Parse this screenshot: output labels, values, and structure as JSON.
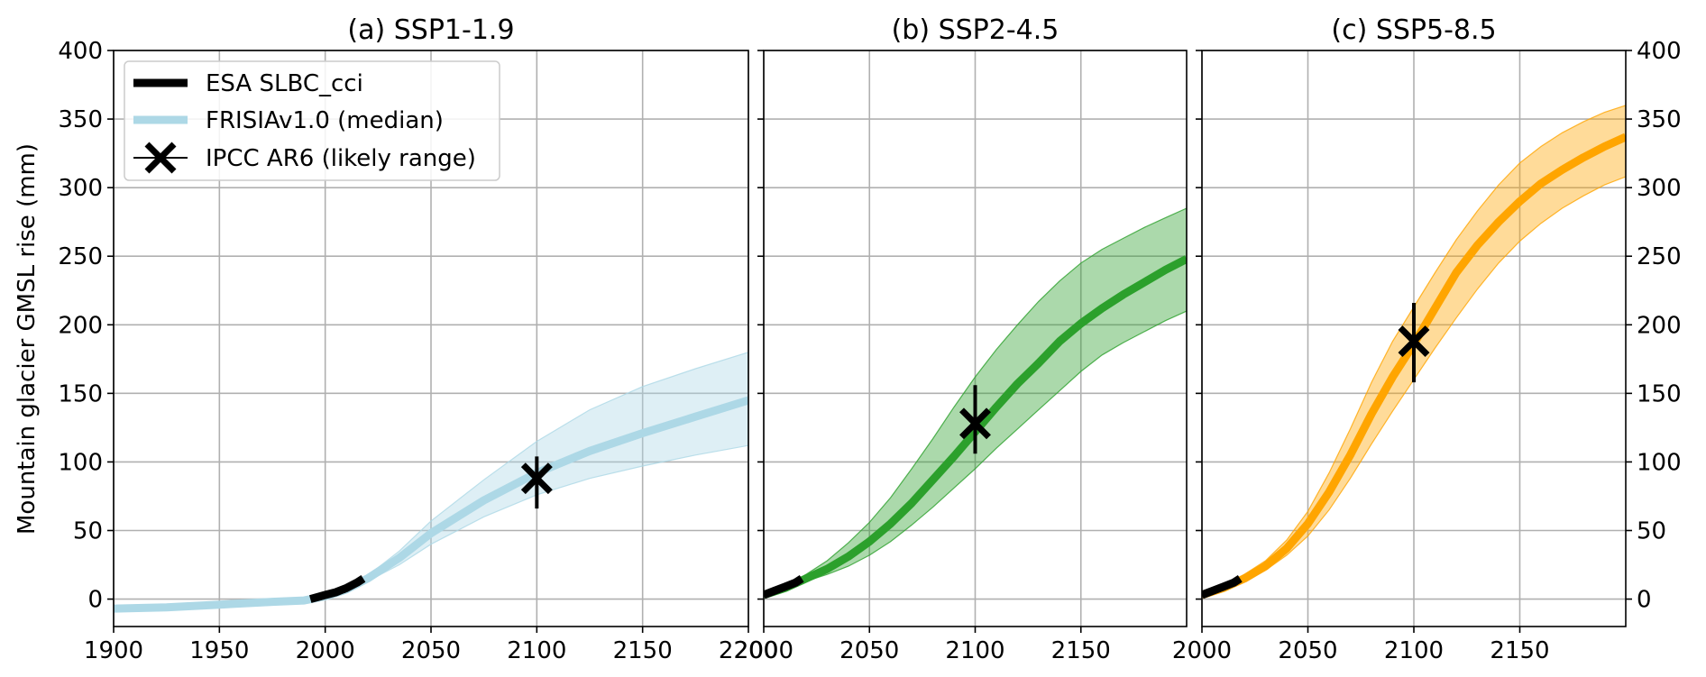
{
  "figure": {
    "ylabel": "Mountain glacier GMSL rise (mm)"
  },
  "legend": {
    "placement": "upper-left of panel (a)",
    "entries": [
      {
        "label": "ESA SLBC_cci",
        "kind": "line",
        "color": "#000000"
      },
      {
        "label": "FRISIAv1.0 (median)",
        "kind": "line",
        "color": "#add8e6"
      },
      {
        "label": "IPCC AR6 (likely range)",
        "kind": "errorbar-x",
        "color": "#000000"
      }
    ]
  },
  "chart_data": [
    {
      "type": "line",
      "title": "(a) SSP1-1.9",
      "xlim": [
        1900,
        2200
      ],
      "ylim": [
        -20,
        400
      ],
      "xticks": [
        1900,
        1950,
        2000,
        2050,
        2100,
        2150,
        2200
      ],
      "yticks": [
        0,
        50,
        100,
        150,
        200,
        250,
        300,
        350,
        400
      ],
      "grid": true,
      "color": "#add8e6",
      "median": {
        "x": [
          1900,
          1925,
          1950,
          1975,
          1990,
          2000,
          2010,
          2020,
          2035,
          2050,
          2075,
          2100,
          2125,
          2150,
          2175,
          2200
        ],
        "y": [
          -7,
          -6,
          -4,
          -2,
          -1,
          2,
          7,
          15,
          30,
          48,
          72,
          92,
          108,
          121,
          133,
          145
        ]
      },
      "band": {
        "x": [
          1900,
          1925,
          1950,
          1975,
          1990,
          2000,
          2010,
          2020,
          2035,
          2050,
          2075,
          2100,
          2125,
          2150,
          2175,
          2200
        ],
        "lower": [
          -9,
          -8,
          -6,
          -3,
          -1,
          2,
          6,
          13,
          25,
          40,
          60,
          76,
          88,
          97,
          105,
          112
        ],
        "upper": [
          -5,
          -4,
          -2,
          -1,
          0,
          3,
          8,
          17,
          35,
          57,
          87,
          115,
          138,
          155,
          168,
          180
        ]
      },
      "observed": {
        "x": [
          1993,
          2000,
          2005,
          2010,
          2015,
          2018
        ],
        "y": [
          0,
          3,
          5,
          8,
          12,
          15
        ]
      },
      "ipcc": {
        "x": 2100,
        "y": 88,
        "low": 66,
        "high": 104
      }
    },
    {
      "type": "line",
      "title": "(b) SSP2-4.5",
      "xlim": [
        2000,
        2200
      ],
      "ylim": [
        -20,
        400
      ],
      "xticks": [
        2000,
        2050,
        2100,
        2150
      ],
      "yticks": [
        0,
        50,
        100,
        150,
        200,
        250,
        300,
        350,
        400
      ],
      "grid": true,
      "color": "#2ca02c",
      "median": {
        "x": [
          2000,
          2010,
          2020,
          2030,
          2040,
          2050,
          2060,
          2070,
          2080,
          2090,
          2100,
          2110,
          2120,
          2130,
          2140,
          2150,
          2160,
          2170,
          2180,
          2190,
          2200
        ],
        "y": [
          3,
          8,
          15,
          22,
          31,
          42,
          55,
          70,
          87,
          104,
          122,
          140,
          157,
          172,
          188,
          201,
          212,
          222,
          231,
          240,
          248
        ]
      },
      "band": {
        "x": [
          2000,
          2010,
          2020,
          2030,
          2040,
          2050,
          2060,
          2070,
          2080,
          2090,
          2100,
          2110,
          2120,
          2130,
          2140,
          2150,
          2160,
          2170,
          2180,
          2190,
          2200
        ],
        "lower": [
          3,
          7,
          13,
          18,
          24,
          32,
          42,
          54,
          67,
          81,
          95,
          110,
          124,
          138,
          152,
          166,
          178,
          187,
          195,
          203,
          210
        ],
        "upper": [
          3,
          9,
          18,
          28,
          41,
          56,
          74,
          95,
          117,
          140,
          162,
          182,
          200,
          217,
          232,
          245,
          255,
          263,
          271,
          278,
          285
        ]
      },
      "observed": {
        "x": [
          2000,
          2005,
          2010,
          2015,
          2018
        ],
        "y": [
          3,
          6,
          9,
          12,
          15
        ]
      },
      "ipcc": {
        "x": 2100,
        "y": 128,
        "low": 106,
        "high": 156
      }
    },
    {
      "type": "line",
      "title": "(c) SSP5-8.5",
      "xlim": [
        2000,
        2200
      ],
      "ylim": [
        -20,
        400
      ],
      "xticks": [
        2000,
        2050,
        2100,
        2150
      ],
      "yticks": [
        0,
        50,
        100,
        150,
        200,
        250,
        300,
        350,
        400
      ],
      "grid": true,
      "color": "#ffa500",
      "median": {
        "x": [
          2000,
          2010,
          2020,
          2030,
          2040,
          2050,
          2060,
          2070,
          2080,
          2090,
          2100,
          2110,
          2120,
          2130,
          2140,
          2150,
          2160,
          2170,
          2180,
          2190,
          2200
        ],
        "y": [
          3,
          8,
          15,
          24,
          37,
          55,
          78,
          105,
          135,
          162,
          186,
          212,
          238,
          258,
          275,
          290,
          303,
          313,
          322,
          330,
          337
        ]
      },
      "band": {
        "x": [
          2000,
          2010,
          2020,
          2030,
          2040,
          2050,
          2060,
          2070,
          2080,
          2090,
          2100,
          2110,
          2120,
          2130,
          2140,
          2150,
          2160,
          2170,
          2180,
          2190,
          2200
        ],
        "lower": [
          3,
          7,
          13,
          21,
          32,
          46,
          65,
          88,
          113,
          137,
          160,
          183,
          205,
          226,
          245,
          261,
          274,
          285,
          294,
          302,
          308
        ],
        "upper": [
          3,
          10,
          18,
          28,
          43,
          64,
          92,
          124,
          158,
          188,
          213,
          238,
          262,
          283,
          302,
          318,
          330,
          340,
          348,
          355,
          360
        ]
      },
      "observed": {
        "x": [
          2000,
          2005,
          2010,
          2015,
          2018
        ],
        "y": [
          3,
          6,
          9,
          12,
          15
        ]
      },
      "ipcc": {
        "x": 2100,
        "y": 188,
        "low": 158,
        "high": 216
      }
    }
  ]
}
